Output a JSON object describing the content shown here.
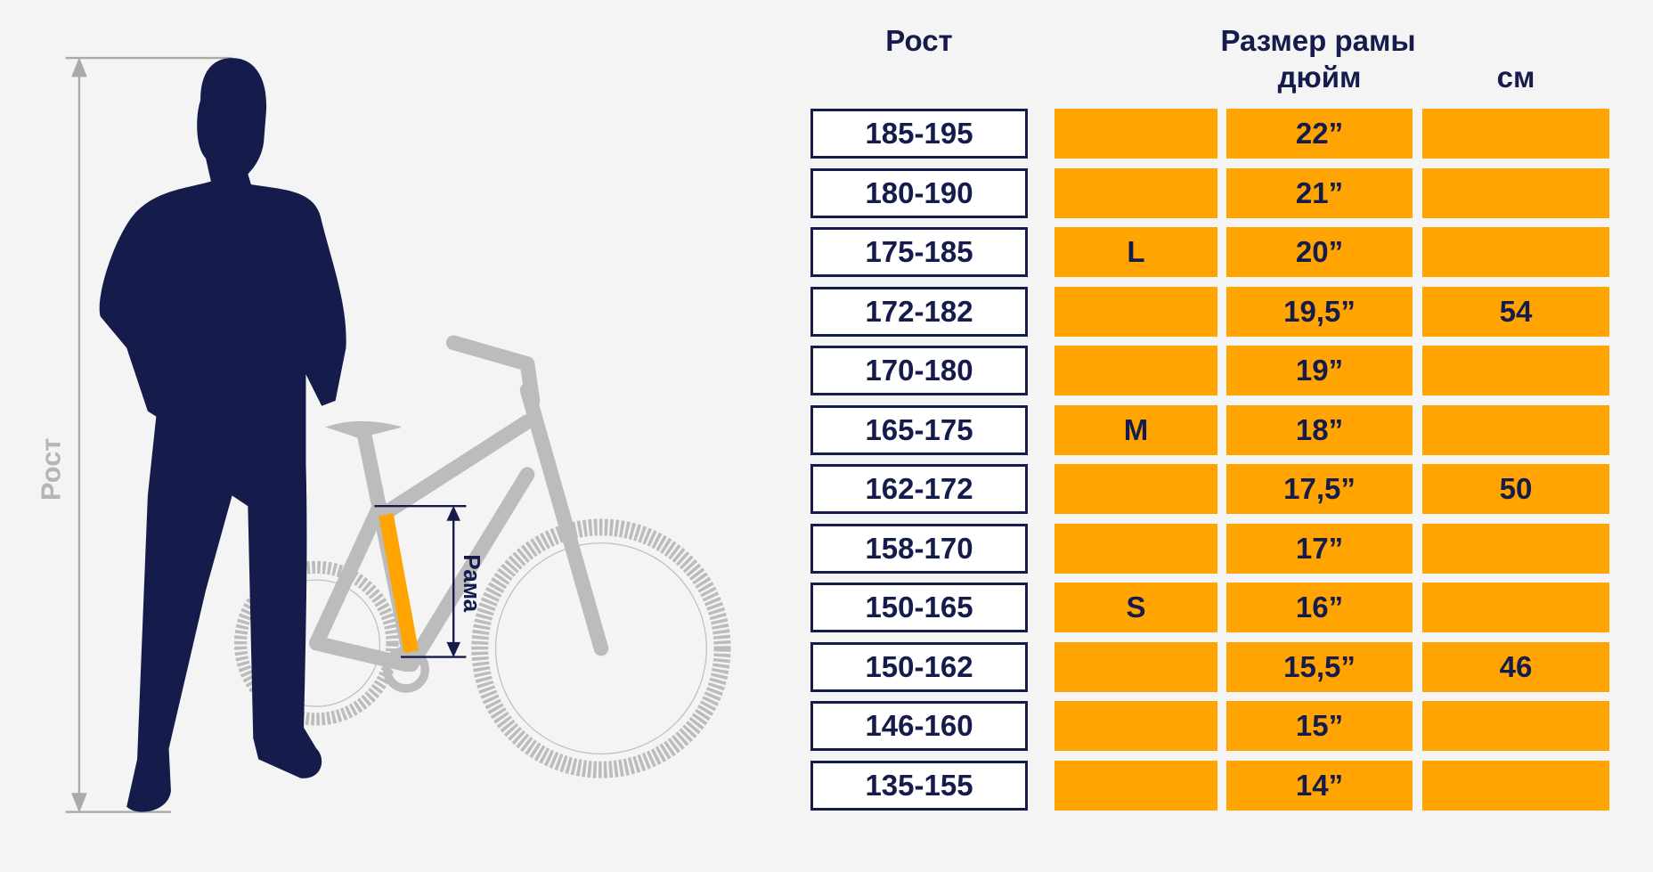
{
  "illustration": {
    "height_label": "Рост",
    "frame_label": "Рама"
  },
  "headers": {
    "height": "Рост",
    "frame_size": "Размер рамы",
    "inch": "дюйм",
    "cm": "см"
  },
  "colors": {
    "navy": "#151c4c",
    "orange": "#ffa400",
    "bike_gray": "#bdbdbd"
  },
  "rows": [
    {
      "height": "185-195",
      "letter": "",
      "inch": "22”",
      "cm": ""
    },
    {
      "height": "180-190",
      "letter": "",
      "inch": "21”",
      "cm": ""
    },
    {
      "height": "175-185",
      "letter": "L",
      "inch": "20”",
      "cm": ""
    },
    {
      "height": "172-182",
      "letter": "",
      "inch": "19,5”",
      "cm": "54"
    },
    {
      "height": "170-180",
      "letter": "",
      "inch": "19”",
      "cm": ""
    },
    {
      "height": "165-175",
      "letter": "M",
      "inch": "18”",
      "cm": ""
    },
    {
      "height": "162-172",
      "letter": "",
      "inch": "17,5”",
      "cm": "50"
    },
    {
      "height": "158-170",
      "letter": "",
      "inch": "17”",
      "cm": ""
    },
    {
      "height": "150-165",
      "letter": "S",
      "inch": "16”",
      "cm": ""
    },
    {
      "height": "150-162",
      "letter": "",
      "inch": "15,5”",
      "cm": "46"
    },
    {
      "height": "146-160",
      "letter": "",
      "inch": "15”",
      "cm": ""
    },
    {
      "height": "135-155",
      "letter": "",
      "inch": "14”",
      "cm": ""
    }
  ]
}
